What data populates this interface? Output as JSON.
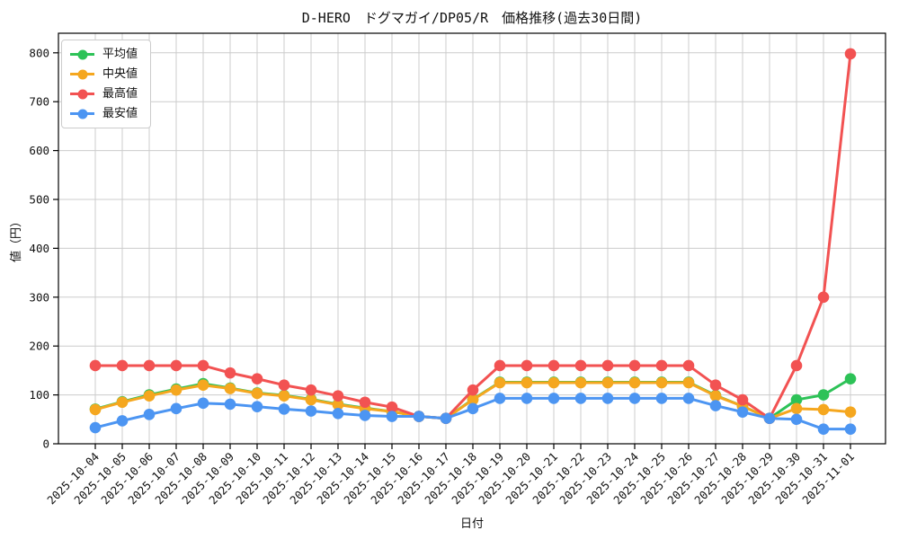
{
  "title": "D-HERO　ドグマガイ/DP05/R　価格推移(過去30日間)",
  "chart_data": {
    "type": "line",
    "title": "D-HERO　ドグマガイ/DP05/R　価格推移(過去30日間)",
    "xlabel": "日付",
    "ylabel": "値（円）",
    "ylim": [
      0,
      840
    ],
    "yticks": [
      0,
      100,
      200,
      300,
      400,
      500,
      600,
      700,
      800
    ],
    "grid": true,
    "legend_position": "upper-left",
    "x": [
      "2025-10-04",
      "2025-10-05",
      "2025-10-06",
      "2025-10-07",
      "2025-10-08",
      "2025-10-09",
      "2025-10-10",
      "2025-10-11",
      "2025-10-12",
      "2025-10-13",
      "2025-10-14",
      "2025-10-15",
      "2025-10-16",
      "2025-10-17",
      "2025-10-18",
      "2025-10-19",
      "2025-10-20",
      "2025-10-21",
      "2025-10-22",
      "2025-10-23",
      "2025-10-24",
      "2025-10-25",
      "2025-10-26",
      "2025-10-27",
      "2025-10-28",
      "2025-10-29",
      "2025-10-30",
      "2025-10-31",
      "2025-11-01"
    ],
    "series": [
      {
        "key": "average",
        "name": "平均値",
        "color": "#2dc257",
        "values": [
          71,
          86,
          100,
          112,
          123,
          114,
          104,
          99,
          91,
          81,
          73,
          66,
          56,
          52,
          91,
          126,
          126,
          126,
          126,
          126,
          126,
          126,
          126,
          99,
          77,
          52,
          90,
          100,
          133
        ]
      },
      {
        "key": "median",
        "name": "中央値",
        "color": "#f5a71f",
        "values": [
          70,
          85,
          98,
          110,
          120,
          113,
          103,
          98,
          90,
          80,
          72,
          66,
          56,
          52,
          90,
          125,
          125,
          125,
          125,
          125,
          125,
          125,
          125,
          98,
          77,
          52,
          72,
          70,
          65
        ]
      },
      {
        "key": "max",
        "name": "最高値",
        "color": "#f25252",
        "values": [
          160,
          160,
          160,
          160,
          160,
          145,
          133,
          120,
          110,
          98,
          85,
          75,
          56,
          52,
          110,
          160,
          160,
          160,
          160,
          160,
          160,
          160,
          160,
          120,
          90,
          52,
          160,
          300,
          798
        ]
      },
      {
        "key": "min",
        "name": "最安値",
        "color": "#4c95f2",
        "values": [
          33,
          47,
          60,
          72,
          83,
          81,
          76,
          71,
          67,
          62,
          58,
          56,
          56,
          52,
          72,
          93,
          93,
          93,
          93,
          93,
          93,
          93,
          93,
          78,
          65,
          52,
          50,
          30,
          30
        ]
      }
    ]
  }
}
